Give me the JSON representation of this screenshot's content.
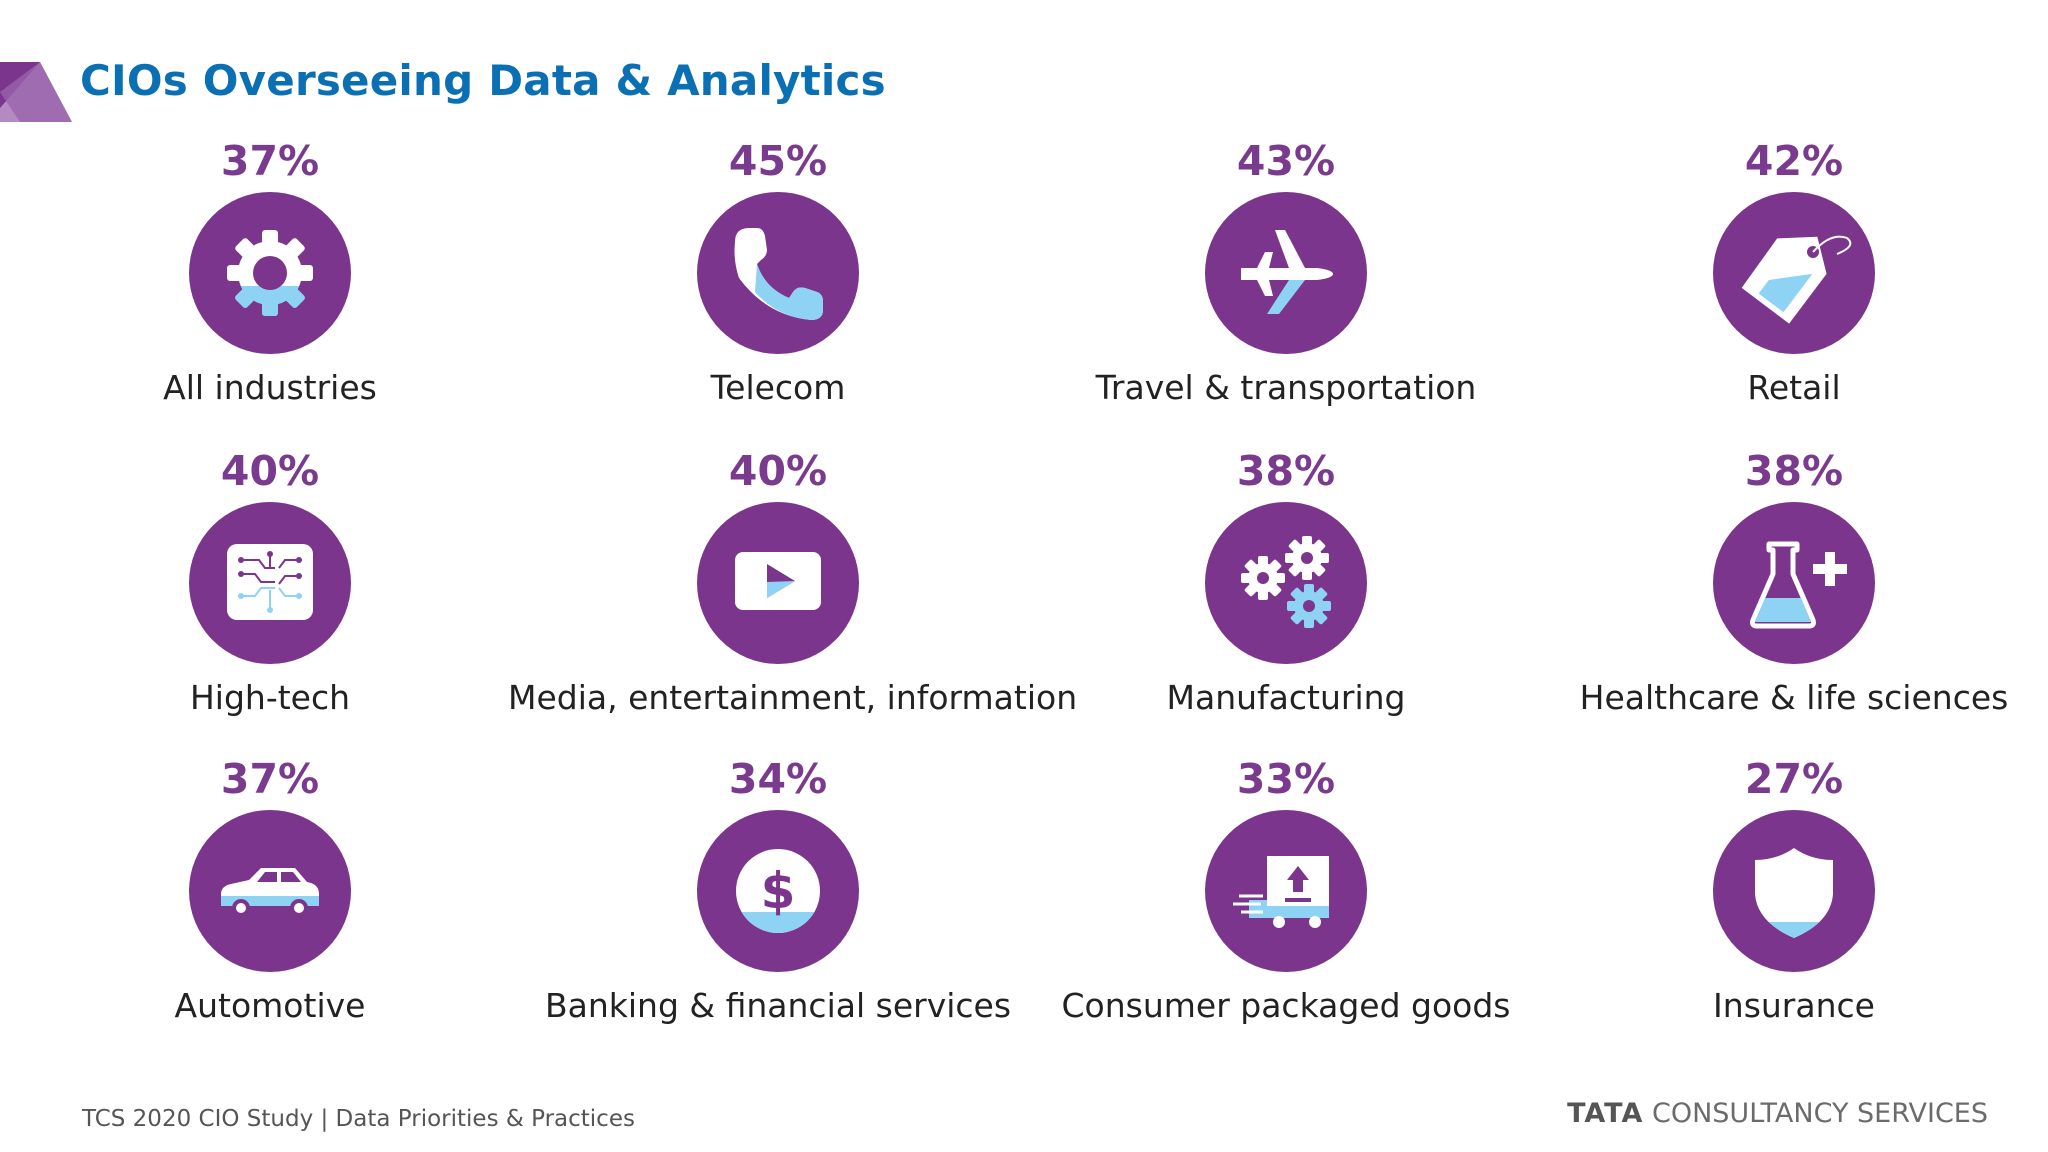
{
  "slide": {
    "title": "CIOs Overseeing Data & Analytics",
    "footer_left": "TCS 2020 CIO Study | Data Priorities & Practices",
    "footer_brand_bold": "TATA",
    "footer_brand_rest": " CONSULTANCY SERVICES"
  },
  "colors": {
    "title": "#0b6fb3",
    "percent": "#7a3a8e",
    "circle": "#7b358c",
    "accent": "#8fd3f4"
  },
  "tiles": [
    {
      "percent": "37%",
      "label": "All industries",
      "icon": "gear-icon"
    },
    {
      "percent": "45%",
      "label": "Telecom",
      "icon": "phone-icon"
    },
    {
      "percent": "43%",
      "label": "Travel & transportation",
      "icon": "airplane-icon"
    },
    {
      "percent": "42%",
      "label": "Retail",
      "icon": "price-tag-icon"
    },
    {
      "percent": "40%",
      "label": "High-tech",
      "icon": "circuit-chip-icon"
    },
    {
      "percent": "40%",
      "label": "Media, entertainment, information",
      "icon": "video-play-icon"
    },
    {
      "percent": "38%",
      "label": "Manufacturing",
      "icon": "gears-icon"
    },
    {
      "percent": "38%",
      "label": "Healthcare & life sciences",
      "icon": "flask-plus-icon"
    },
    {
      "percent": "37%",
      "label": "Automotive",
      "icon": "car-icon"
    },
    {
      "percent": "34%",
      "label": "Banking & financial services",
      "icon": "dollar-coin-icon"
    },
    {
      "percent": "33%",
      "label": "Consumer packaged goods",
      "icon": "delivery-truck-icon"
    },
    {
      "percent": "27%",
      "label": "Insurance",
      "icon": "shield-icon"
    }
  ]
}
